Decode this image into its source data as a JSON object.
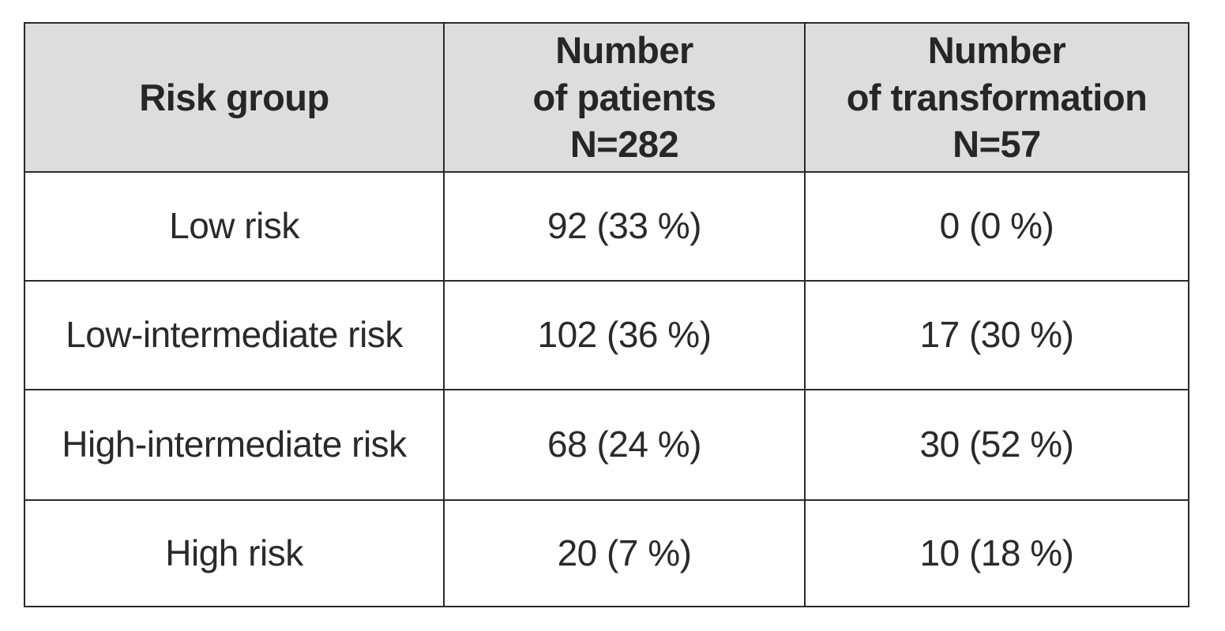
{
  "table": {
    "headers": [
      {
        "lines": [
          "Risk group"
        ]
      },
      {
        "lines": [
          "Number",
          "of patients",
          "N=282"
        ]
      },
      {
        "lines": [
          "Number",
          "of transformation",
          "N=57"
        ]
      }
    ],
    "rows": [
      {
        "risk_group": "Low risk",
        "patients": "92 (33 %)",
        "transformation": "0 (0 %)"
      },
      {
        "risk_group": "Low-intermediate risk",
        "patients": "102 (36 %)",
        "transformation": "17 (30 %)"
      },
      {
        "risk_group": "High-intermediate risk",
        "patients": "68 (24 %)",
        "transformation": "30 (52 %)"
      },
      {
        "risk_group": "High risk",
        "patients": "20 (7 %)",
        "transformation": "10 (18 %)"
      }
    ]
  }
}
